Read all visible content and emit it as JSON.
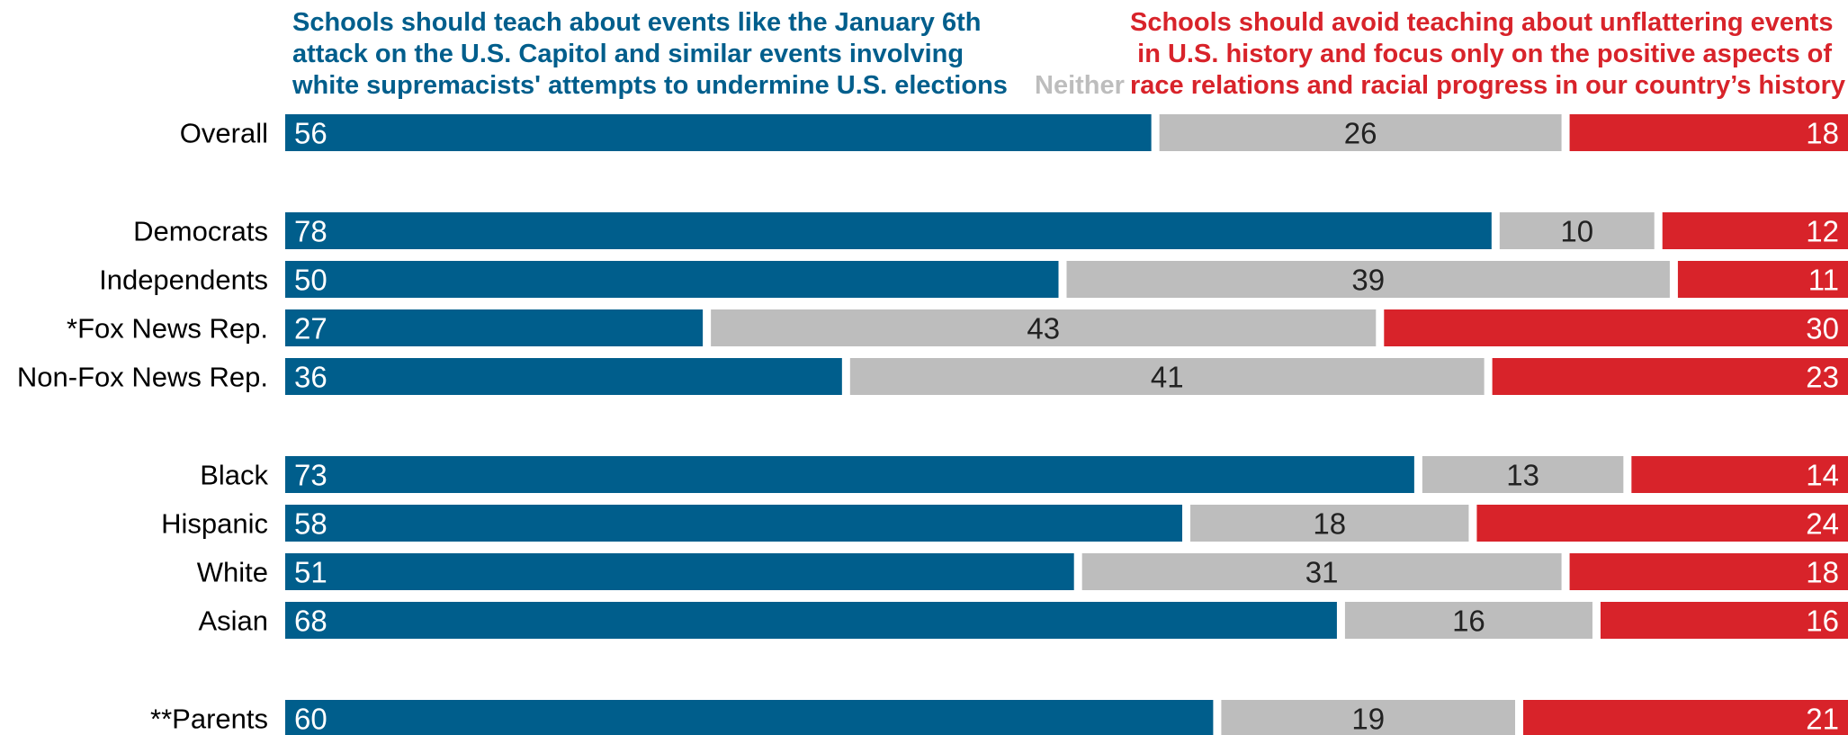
{
  "header": {
    "left_lines": [
      "Schools should teach about events like the January 6th",
      "attack on the U.S. Capitol and similar events involving",
      "white supremacists' attempts to undermine U.S. elections"
    ],
    "neither": "Neither",
    "right_lines": [
      "Schools should avoid teaching about unflattering events",
      "in U.S. history and focus only on the positive aspects of",
      "race relations and racial progress in our country’s history"
    ]
  },
  "colors": {
    "teach": "#005e8c",
    "neither": "#bdbdbd",
    "avoid": "#d8232a"
  },
  "chart_data": {
    "type": "bar",
    "stacked": true,
    "orientation": "horizontal",
    "categories": [
      "Overall",
      "Democrats",
      "Independents",
      "*Fox News Rep.",
      "Non-Fox News Rep.",
      "Black",
      "Hispanic",
      "White",
      "Asian",
      "**Parents"
    ],
    "groups": [
      [
        "Overall"
      ],
      [
        "Democrats",
        "Independents",
        "*Fox News Rep.",
        "Non-Fox News Rep."
      ],
      [
        "Black",
        "Hispanic",
        "White",
        "Asian"
      ],
      [
        "**Parents"
      ]
    ],
    "series": [
      {
        "key": "teach",
        "values": [
          56,
          78,
          50,
          27,
          36,
          73,
          58,
          51,
          68,
          60
        ]
      },
      {
        "key": "neither",
        "name": "Neither",
        "values": [
          26,
          10,
          39,
          43,
          41,
          13,
          18,
          31,
          16,
          19
        ]
      },
      {
        "key": "avoid",
        "values": [
          18,
          12,
          11,
          30,
          23,
          14,
          24,
          18,
          16,
          21
        ]
      }
    ],
    "xlim": [
      0,
      100
    ],
    "data_labels": true,
    "grid": false,
    "legend": "top"
  }
}
